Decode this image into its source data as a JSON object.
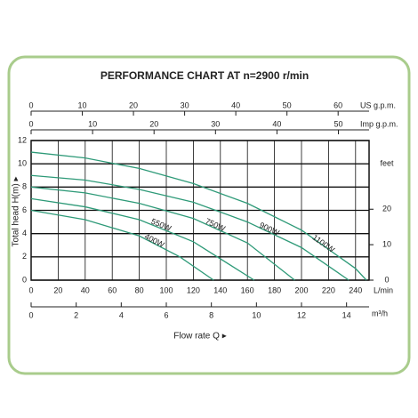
{
  "chart_data": {
    "type": "line",
    "title": "PERFORMANCE CHART AT n=2900 r/min",
    "xlabel": "Flow rate  Q ▸",
    "ylabel": "Total head H(m) ▸",
    "xunit": "L/min",
    "xlim": [
      0,
      250
    ],
    "xticks": [
      0,
      20,
      40,
      60,
      80,
      100,
      120,
      140,
      160,
      180,
      200,
      220,
      240
    ],
    "ylim": [
      0,
      12
    ],
    "yticks": [
      0,
      2,
      4,
      6,
      8,
      10,
      12
    ],
    "y2label": "feet",
    "y2lim": [
      0,
      39.37
    ],
    "y2ticks": [
      0,
      10,
      20
    ],
    "top_axes": [
      {
        "label": "US g.p.m.",
        "lim": [
          0,
          66.05
        ],
        "ticks": [
          0,
          10,
          20,
          30,
          40,
          50,
          60
        ]
      },
      {
        "label": "Imp g.p.m.",
        "lim": [
          0,
          54.99
        ],
        "ticks": [
          0,
          10,
          20,
          30,
          40,
          50
        ]
      }
    ],
    "bottom_axis": {
      "label": "m³/h",
      "lim": [
        0,
        15
      ],
      "ticks": [
        0,
        2,
        4,
        6,
        8,
        10,
        12,
        14
      ]
    },
    "grid": true,
    "series": [
      {
        "name": "1100W",
        "color": "#2e9a78",
        "x": [
          0,
          40,
          80,
          120,
          160,
          200,
          240,
          248
        ],
        "values": [
          11,
          10.5,
          9.6,
          8.3,
          6.6,
          4.3,
          1,
          0
        ]
      },
      {
        "name": "900W",
        "color": "#2e9a78",
        "x": [
          0,
          40,
          80,
          120,
          160,
          200,
          235
        ],
        "values": [
          9,
          8.6,
          7.8,
          6.7,
          5,
          2.8,
          0
        ]
      },
      {
        "name": "750W",
        "color": "#2e9a78",
        "x": [
          0,
          40,
          80,
          120,
          160,
          195
        ],
        "values": [
          8,
          7.5,
          6.6,
          5.3,
          3.2,
          0
        ]
      },
      {
        "name": "550W",
        "color": "#2e9a78",
        "x": [
          0,
          40,
          80,
          120,
          165
        ],
        "values": [
          7,
          6.3,
          5.2,
          3.3,
          0
        ]
      },
      {
        "name": "400W",
        "color": "#2e9a78",
        "x": [
          0,
          40,
          80,
          110,
          135
        ],
        "values": [
          6,
          5.2,
          3.8,
          2,
          0
        ]
      }
    ]
  }
}
